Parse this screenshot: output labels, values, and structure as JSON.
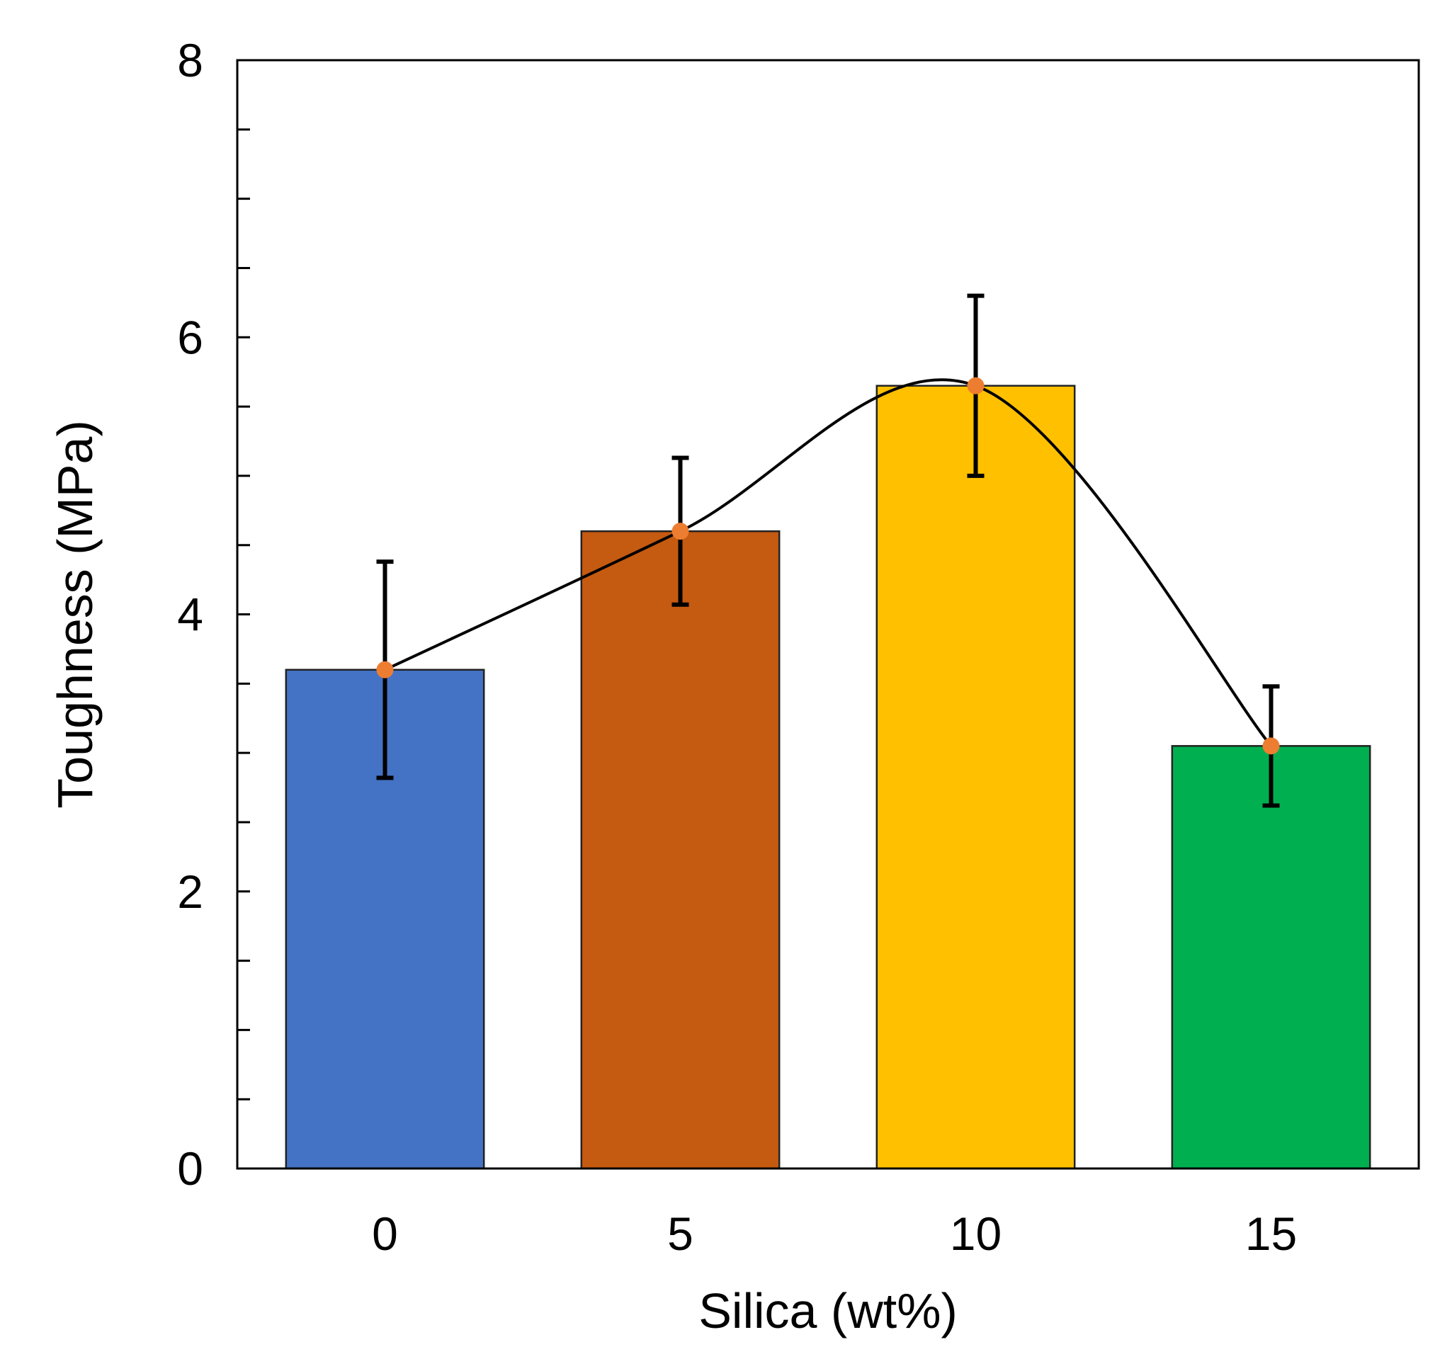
{
  "chart_data": {
    "type": "bar",
    "title": "",
    "xlabel": "Silica (wt%)",
    "ylabel": "Toughness  (MPa)",
    "categories": [
      "0",
      "5",
      "10",
      "15"
    ],
    "values": [
      3.6,
      4.6,
      5.65,
      3.05
    ],
    "error": [
      0.78,
      0.53,
      0.65,
      0.43
    ],
    "bar_colors": [
      "#4472C4",
      "#C55A11",
      "#FFC000",
      "#00B050"
    ],
    "ylim": [
      0,
      8
    ],
    "y_major_ticks": [
      0,
      2,
      4,
      6,
      8
    ],
    "y_minor_step": 0.5,
    "trend_line": {
      "type": "smoothed",
      "color": "#000000",
      "marker_color": "#ED7D31"
    },
    "grid": false,
    "legend": "none"
  }
}
